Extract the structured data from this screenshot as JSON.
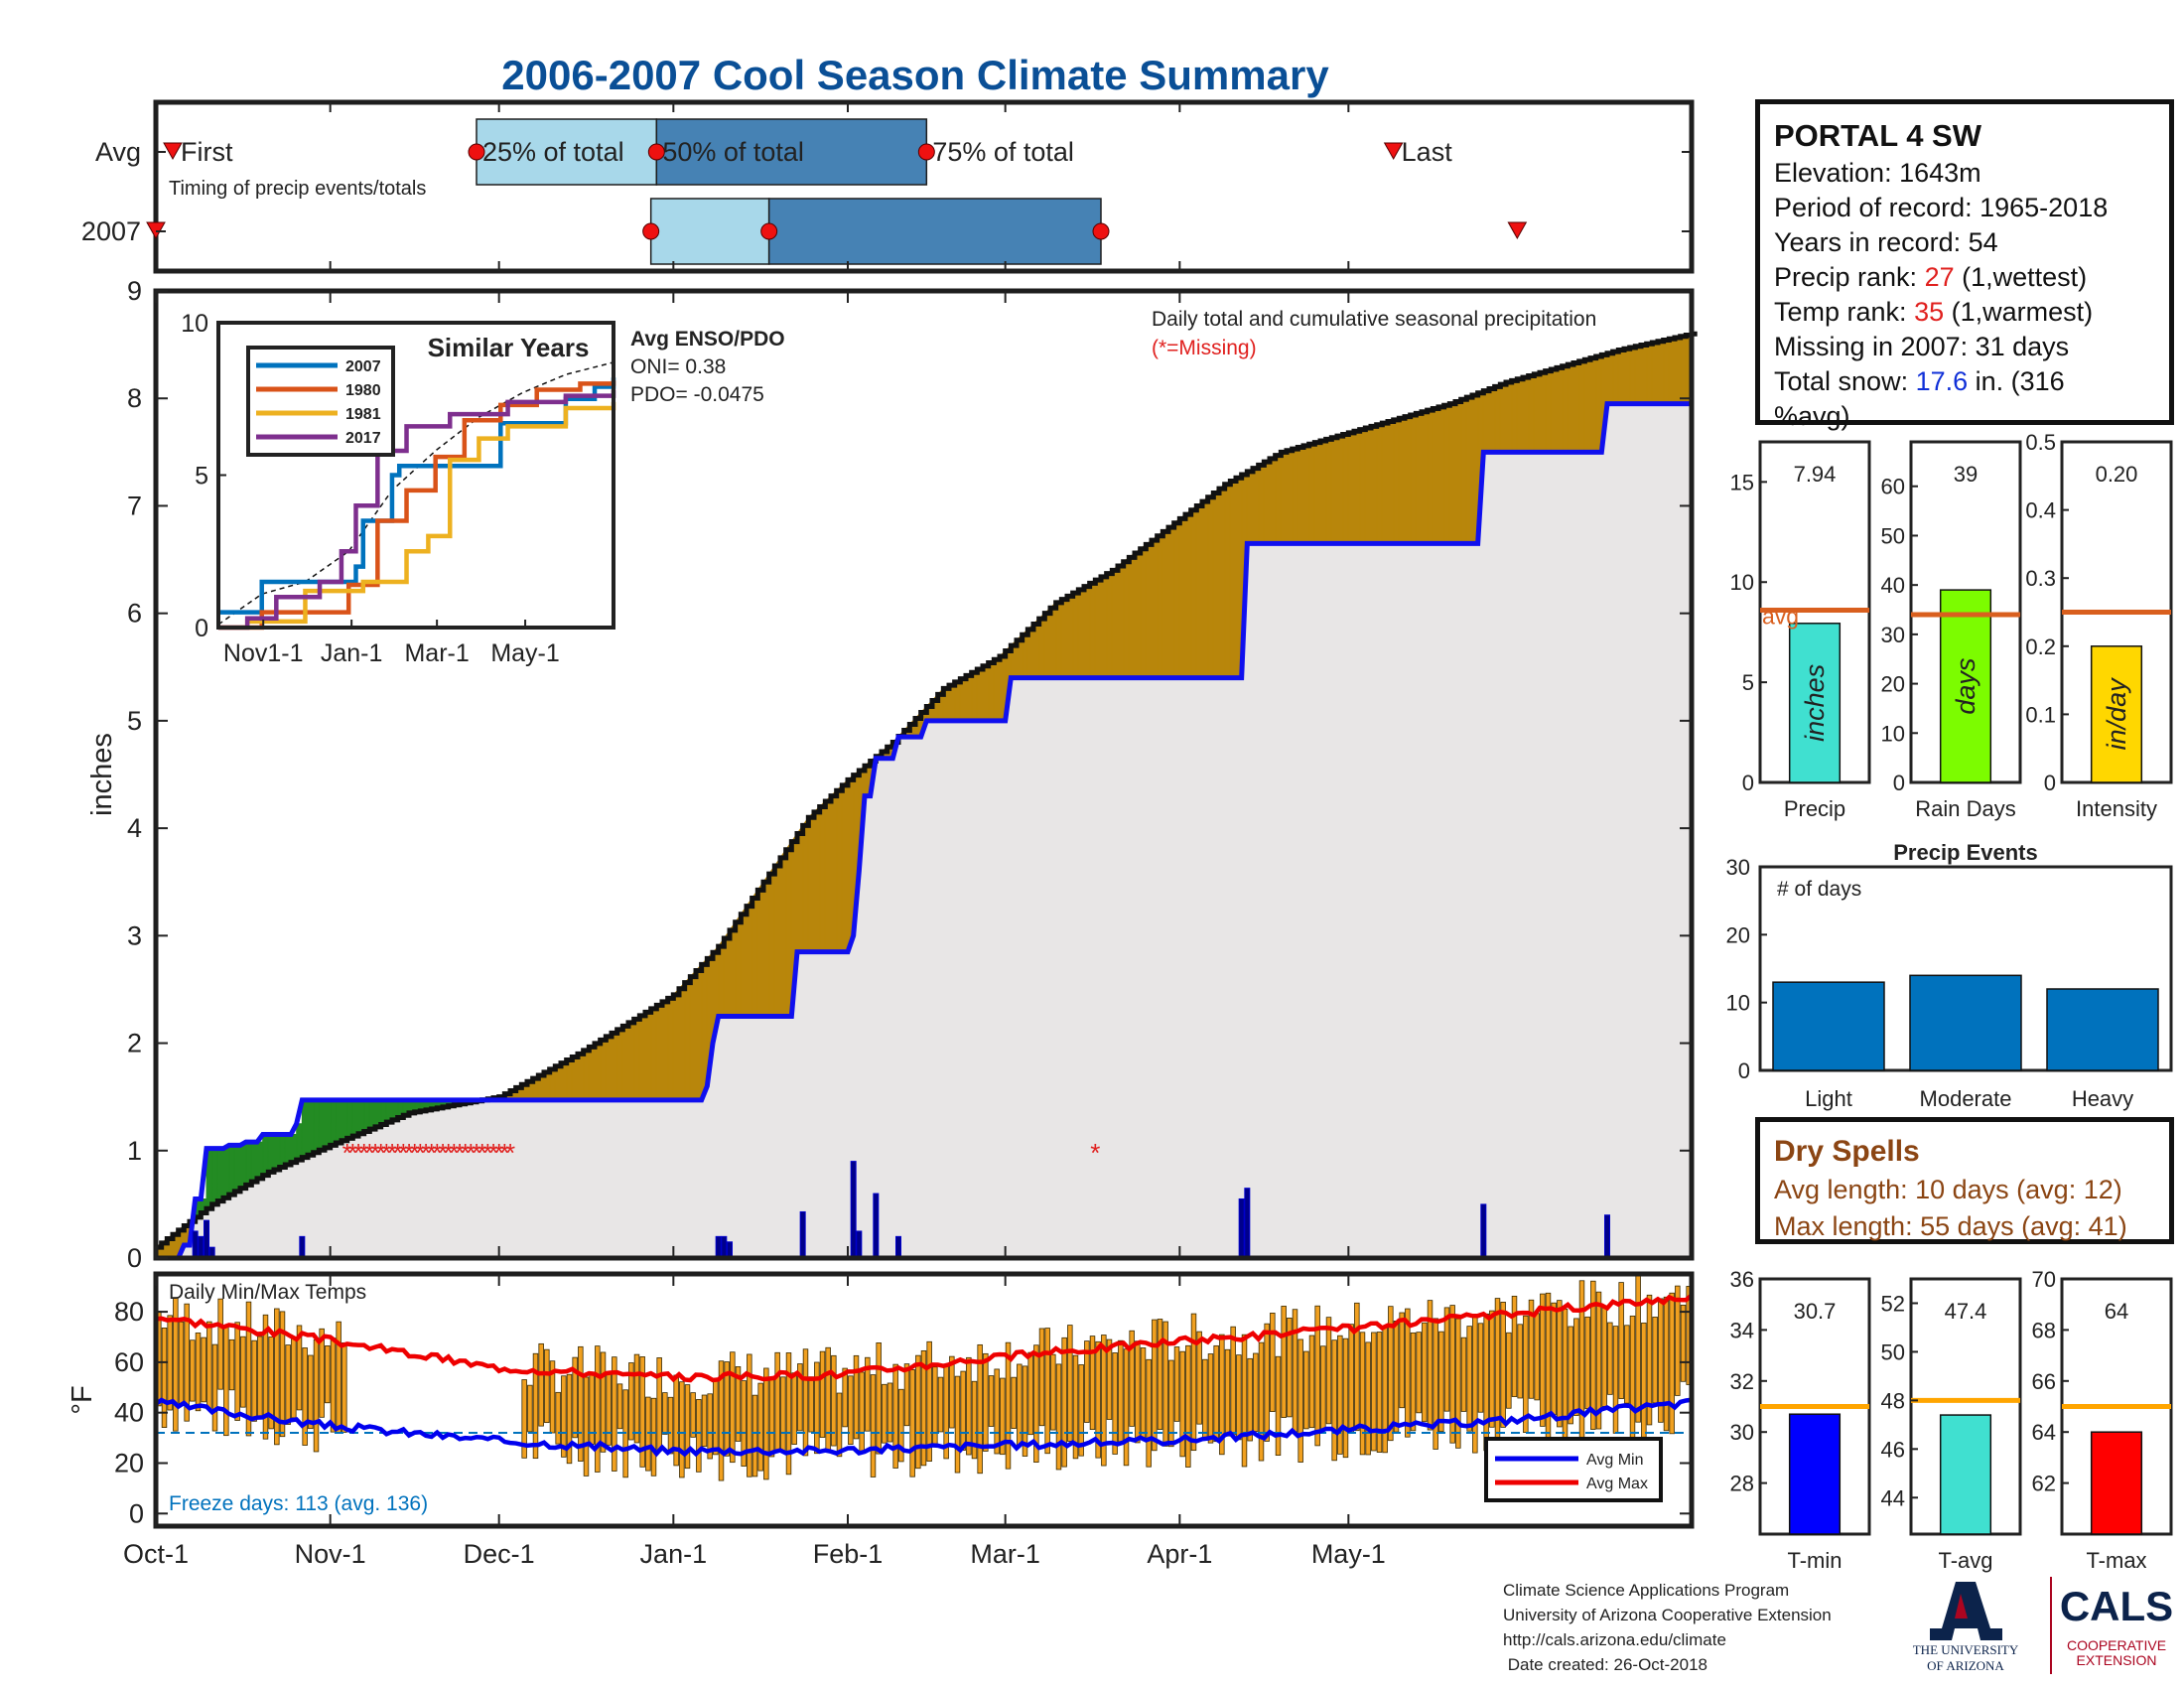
{
  "title": "2006-2007 Cool Season Climate Summary",
  "colors": {
    "precip_fill": "#b8860b",
    "blue_line": "#1010ee",
    "green_fill": "#238b23",
    "bg_fill": "#e8e6e6",
    "avg_line": "#d95f1e",
    "tmin": "#0000ff",
    "tavg": "#40e0d0",
    "tmax": "#ff0000",
    "bar_orange": "#f0a020",
    "title_blue": "#0a4f96"
  },
  "timing": {
    "row_labels": [
      "Avg",
      "2007"
    ],
    "note": "Timing of precip events/totals",
    "labels": {
      "first": "First",
      "p25": "25% of total",
      "p50": "50% of total",
      "p75": "75% of total",
      "last": "Last"
    },
    "avg": {
      "first": "Oct-4",
      "p25": "Nov-27",
      "p50": "Dec-29",
      "p75": "Feb-15",
      "last": "May-9"
    },
    "y2007": {
      "first": "Oct-1",
      "p25": "Dec-28",
      "p50": "Jan-18",
      "p75": "Mar-18",
      "last": "May-31"
    }
  },
  "station": {
    "name": "PORTAL 4 SW",
    "elevation": "Elevation: 1643m",
    "period": "Period of record: 1965-2018",
    "years": "Years in record: 54",
    "precip_rank_pre": "Precip rank: ",
    "precip_rank_val": "27",
    "precip_rank_post": " (1,wettest)",
    "temp_rank_pre": "Temp rank: ",
    "temp_rank_val": "35",
    "temp_rank_post": " (1,warmest)",
    "missing": "Missing in 2007: 31 days",
    "snow_pre": "Total snow: ",
    "snow_val": "17.6",
    "snow_post": " in. (316",
    "snow_post2": "%avg)"
  },
  "main_chart": {
    "ylabel": "inches",
    "ylim": [
      0,
      9
    ],
    "yticks": [
      0,
      1,
      2,
      3,
      4,
      5,
      6,
      7,
      8,
      9
    ],
    "xtick_labels": [
      "Oct-1",
      "Nov-1",
      "Dec-1",
      "Jan-1",
      "Feb-1",
      "Mar-1",
      "Apr-1",
      "May-1"
    ],
    "note": "Daily total and cumulative seasonal precipitation",
    "missing_note": "(*=Missing)",
    "avg_cumulative": [
      [
        0,
        0.1
      ],
      [
        10,
        0.5
      ],
      [
        20,
        0.8
      ],
      [
        31,
        1.05
      ],
      [
        45,
        1.35
      ],
      [
        61,
        1.5
      ],
      [
        75,
        1.9
      ],
      [
        92,
        2.45
      ],
      [
        100,
        2.9
      ],
      [
        108,
        3.5
      ],
      [
        116,
        4.1
      ],
      [
        123,
        4.45
      ],
      [
        131,
        4.8
      ],
      [
        140,
        5.3
      ],
      [
        150,
        5.6
      ],
      [
        160,
        6.1
      ],
      [
        170,
        6.4
      ],
      [
        180,
        6.8
      ],
      [
        190,
        7.2
      ],
      [
        200,
        7.5
      ],
      [
        210,
        7.65
      ],
      [
        220,
        7.8
      ],
      [
        230,
        7.95
      ],
      [
        240,
        8.15
      ],
      [
        250,
        8.3
      ],
      [
        260,
        8.45
      ],
      [
        273,
        8.6
      ]
    ],
    "cumulative_2007": [
      [
        0,
        0
      ],
      [
        5,
        0.12
      ],
      [
        7,
        0.55
      ],
      [
        9,
        1.02
      ],
      [
        13,
        1.05
      ],
      [
        16,
        1.08
      ],
      [
        19,
        1.15
      ],
      [
        25,
        1.25
      ],
      [
        26,
        1.47
      ],
      [
        91,
        1.47
      ],
      [
        98,
        1.6
      ],
      [
        99,
        2.0
      ],
      [
        100,
        2.25
      ],
      [
        114,
        2.85
      ],
      [
        124,
        3.0
      ],
      [
        125,
        3.6
      ],
      [
        126,
        4.3
      ],
      [
        128,
        4.65
      ],
      [
        132,
        4.85
      ],
      [
        137,
        5.0
      ],
      [
        152,
        5.4
      ],
      [
        193,
        5.4
      ],
      [
        194,
        6.65
      ],
      [
        219,
        6.65
      ],
      [
        236,
        7.5
      ],
      [
        257,
        7.5
      ],
      [
        258,
        7.95
      ],
      [
        273,
        7.95
      ]
    ],
    "missing_days": [
      34,
      35,
      36,
      37,
      38,
      39,
      40,
      41,
      42,
      43,
      44,
      45,
      46,
      47,
      48,
      49,
      50,
      51,
      52,
      53,
      54,
      55,
      56,
      57,
      58,
      59,
      60,
      61,
      62,
      63,
      167
    ],
    "daily_bars": [
      [
        7,
        0.25
      ],
      [
        8,
        0.2
      ],
      [
        9,
        0.35
      ],
      [
        10,
        0.1
      ],
      [
        26,
        0.2
      ],
      [
        100,
        0.2
      ],
      [
        101,
        0.2
      ],
      [
        102,
        0.15
      ],
      [
        115,
        0.43
      ],
      [
        124,
        0.9
      ],
      [
        125,
        0.25
      ],
      [
        128,
        0.6
      ],
      [
        132,
        0.2
      ],
      [
        193,
        0.55
      ],
      [
        194,
        0.65
      ],
      [
        236,
        0.5
      ],
      [
        258,
        0.4
      ]
    ]
  },
  "inset": {
    "title": "Similar Years",
    "ylim": [
      0,
      10
    ],
    "yticks": [
      0,
      5,
      10
    ],
    "xtick_labels": [
      "Nov1-1",
      "Jan-1",
      "Mar-1",
      "May-1"
    ],
    "enso_title": "Avg ENSO/PDO",
    "oni": "ONI= 0.38",
    "pdo": "PDO= -0.0475",
    "series": [
      {
        "name": "2007",
        "color": "#0072bd",
        "points": [
          [
            0,
            0.5
          ],
          [
            30,
            1.5
          ],
          [
            60,
            1.5
          ],
          [
            90,
            1.5
          ],
          [
            95,
            2.0
          ],
          [
            100,
            3.5
          ],
          [
            120,
            5.0
          ],
          [
            125,
            5.3
          ],
          [
            155,
            5.3
          ],
          [
            195,
            6.7
          ],
          [
            215,
            6.7
          ],
          [
            240,
            7.5
          ],
          [
            260,
            7.9
          ],
          [
            273,
            8.2
          ]
        ]
      },
      {
        "name": "1980",
        "color": "#d95319",
        "points": [
          [
            0,
            0
          ],
          [
            30,
            0.5
          ],
          [
            60,
            0.5
          ],
          [
            90,
            1.4
          ],
          [
            110,
            3.5
          ],
          [
            130,
            4.5
          ],
          [
            150,
            5.6
          ],
          [
            170,
            6.8
          ],
          [
            195,
            7.3
          ],
          [
            220,
            7.8
          ],
          [
            250,
            8.0
          ],
          [
            273,
            8.1
          ]
        ]
      },
      {
        "name": "1981",
        "color": "#edb120",
        "points": [
          [
            0,
            0
          ],
          [
            20,
            0.2
          ],
          [
            60,
            1.2
          ],
          [
            100,
            1.5
          ],
          [
            130,
            2.5
          ],
          [
            145,
            3.0
          ],
          [
            160,
            5.5
          ],
          [
            180,
            6.2
          ],
          [
            200,
            6.6
          ],
          [
            240,
            7.2
          ],
          [
            273,
            7.4
          ]
        ]
      },
      {
        "name": "2017",
        "color": "#7e2f8e",
        "points": [
          [
            0,
            0
          ],
          [
            20,
            0.3
          ],
          [
            40,
            1.0
          ],
          [
            70,
            1.5
          ],
          [
            85,
            2.5
          ],
          [
            95,
            4.0
          ],
          [
            110,
            5.8
          ],
          [
            130,
            6.6
          ],
          [
            160,
            7.0
          ],
          [
            200,
            7.4
          ],
          [
            240,
            7.6
          ],
          [
            273,
            7.8
          ]
        ]
      }
    ],
    "avg_points": [
      [
        0,
        0.1
      ],
      [
        30,
        1.1
      ],
      [
        60,
        1.5
      ],
      [
        90,
        2.5
      ],
      [
        120,
        4.5
      ],
      [
        150,
        5.8
      ],
      [
        180,
        6.9
      ],
      [
        210,
        7.7
      ],
      [
        240,
        8.3
      ],
      [
        273,
        8.7
      ]
    ]
  },
  "side_bars": [
    {
      "label": "Precip",
      "value": 7.94,
      "value_text": "7.94",
      "avg": 8.6,
      "ylim": [
        0,
        17
      ],
      "yticks": [
        0,
        5,
        10,
        15
      ],
      "color": "#40e0d0",
      "bar_text": "inches",
      "avg_text": "avg"
    },
    {
      "label": "Rain Days",
      "value": 39,
      "value_text": "39",
      "avg": 34,
      "ylim": [
        0,
        69
      ],
      "yticks": [
        0,
        10,
        20,
        30,
        40,
        50,
        60
      ],
      "color": "#7cfc00",
      "bar_text": "days",
      "avg_text": ""
    },
    {
      "label": "Intensity",
      "value": 0.2,
      "value_text": "0.20",
      "avg": 0.25,
      "ylim": [
        0,
        0.5
      ],
      "yticks": [
        0,
        0.1,
        0.2,
        0.3,
        0.4,
        0.5
      ],
      "color": "#ffd700",
      "bar_text": "in/day",
      "avg_text": ""
    }
  ],
  "precip_events": {
    "title": "Precip Events",
    "ylabel_text": "# of days",
    "ylim": [
      0,
      30
    ],
    "yticks": [
      0,
      10,
      20,
      30
    ],
    "categories": [
      "Light",
      "Moderate",
      "Heavy"
    ],
    "values": [
      13,
      14,
      12
    ],
    "color": "#0072bd"
  },
  "dry_spells": {
    "title": "Dry Spells",
    "avg_length": "Avg length: 10 days (avg: 12)",
    "max_length": "Max length: 55 days (avg: 41)"
  },
  "temp_chart": {
    "title": "Daily Min/Max Temps",
    "ylabel": "°F",
    "ylim": [
      -5,
      95
    ],
    "yticks": [
      0,
      20,
      40,
      60,
      80
    ],
    "freeze_text": "Freeze days: 113 (avg. 136)",
    "freeze_line": 32,
    "legend": [
      "Avg Min",
      "Avg Max"
    ],
    "missing_ranges": [
      [
        34,
        64
      ]
    ],
    "avg_min_points": [
      [
        0,
        44
      ],
      [
        30,
        35
      ],
      [
        60,
        29
      ],
      [
        90,
        25
      ],
      [
        120,
        25
      ],
      [
        150,
        27
      ],
      [
        180,
        29
      ],
      [
        210,
        33
      ],
      [
        240,
        37
      ],
      [
        273,
        44
      ]
    ],
    "avg_max_points": [
      [
        0,
        78
      ],
      [
        30,
        69
      ],
      [
        60,
        58
      ],
      [
        90,
        54
      ],
      [
        120,
        55
      ],
      [
        150,
        62
      ],
      [
        180,
        68
      ],
      [
        210,
        73
      ],
      [
        240,
        79
      ],
      [
        273,
        86
      ]
    ]
  },
  "temp_bars": [
    {
      "label": "T-min",
      "value": 30.7,
      "value_text": "30.7",
      "avg": 31,
      "ylim": [
        26,
        36
      ],
      "yticks": [
        28,
        30,
        32,
        34,
        36
      ],
      "color": "#0000ff"
    },
    {
      "label": "T-avg",
      "value": 47.4,
      "value_text": "47.4",
      "avg": 48,
      "ylim": [
        42.5,
        53
      ],
      "yticks": [
        44,
        46,
        48,
        50,
        52
      ],
      "color": "#40e0d0"
    },
    {
      "label": "T-max",
      "value": 64,
      "value_text": "64",
      "avg": 65,
      "ylim": [
        60,
        70
      ],
      "yticks": [
        62,
        64,
        66,
        68,
        70
      ],
      "color": "#ff0000"
    }
  ],
  "footer": {
    "line1": "Climate Science Applications Program",
    "line2": "University of Arizona Cooperative Extension",
    "line3": "http://cals.arizona.edu/climate",
    "line4": " Date created: 26-Oct-2018",
    "ua1": "THE UNIVERSITY",
    "ua2": "OF ARIZONA",
    "cals": "CALS",
    "coop1": "COOPERATIVE",
    "coop2": "EXTENSION"
  }
}
